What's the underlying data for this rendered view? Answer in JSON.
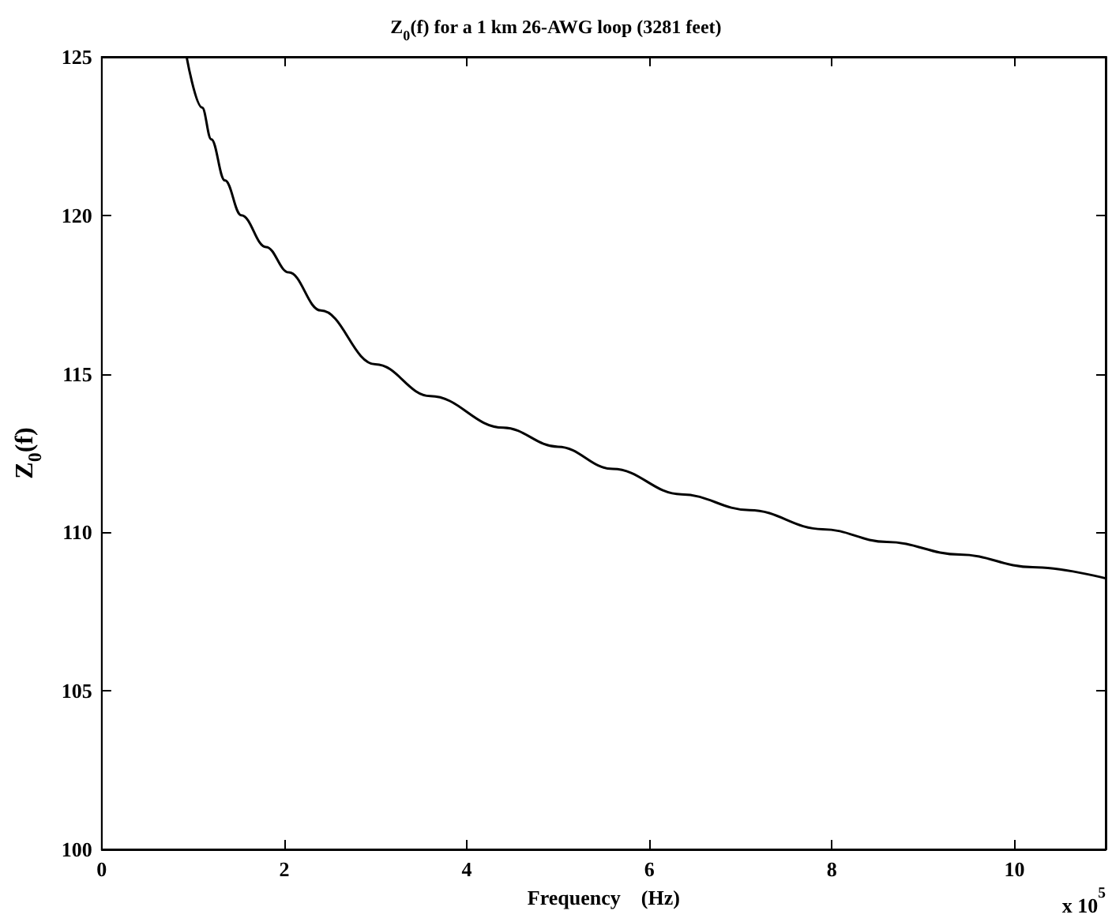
{
  "chart_data": {
    "type": "line",
    "title": "Z$_{0}$(f) for a 1 km 26-AWG loop (3281 feet)",
    "xlabel": "Frequency    (Hz)",
    "ylabel": "Z$_{0}$(f)",
    "annotations": [
      "x 10$^{5}$"
    ],
    "series": [
      {
        "color": "#000000",
        "x": [
          0.93,
          1.1,
          1.2,
          1.35,
          1.53,
          1.8,
          2.05,
          2.4,
          3.0,
          3.6,
          4.4,
          5.0,
          5.6,
          6.35,
          7.1,
          7.9,
          8.6,
          9.4,
          10.2,
          11.0
        ],
        "values": [
          125,
          123.4,
          122.4,
          121.1,
          120,
          119.0,
          118.2,
          117.0,
          115.3,
          114.3,
          113.3,
          112.7,
          112.0,
          111.2,
          110.7,
          110.1,
          109.7,
          109.3,
          108.9,
          108.55
        ]
      }
    ],
    "xlim": [
      0,
      11
    ],
    "xticks": [
      0,
      2,
      4,
      6,
      8,
      10
    ],
    "ylim": [
      100,
      125
    ],
    "yticks": [
      100,
      105,
      110,
      115,
      120,
      125
    ],
    "grid": false,
    "marker": "none",
    "line_style": "solid"
  }
}
